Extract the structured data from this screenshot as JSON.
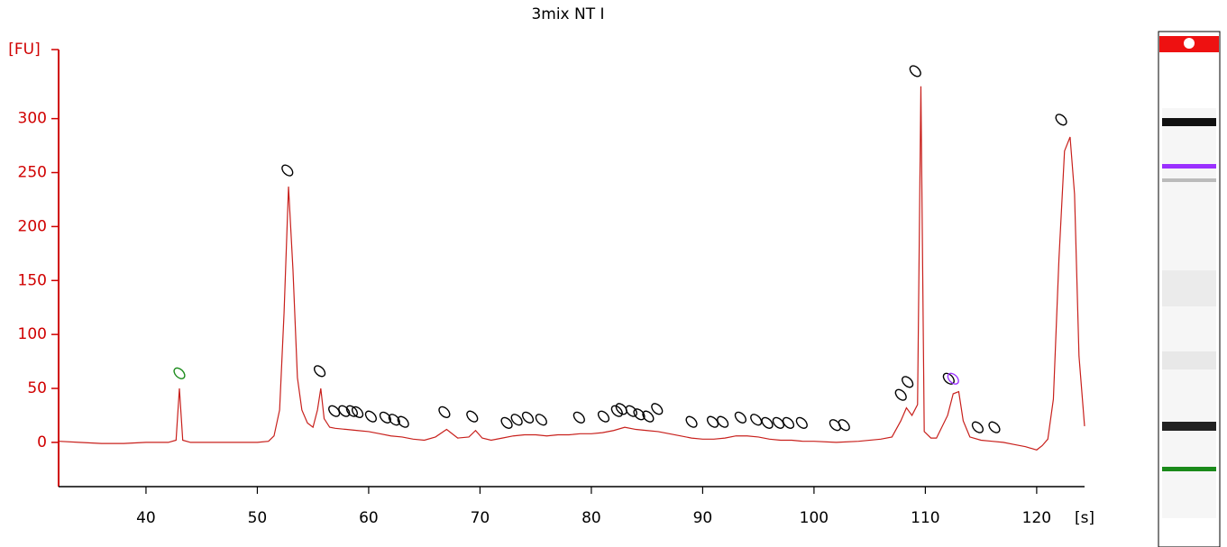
{
  "chart_data": {
    "type": "line",
    "title": "3mix NT I",
    "y_label": "[FU]",
    "x_label": "[s]",
    "xlim": [
      32.15,
      124.3
    ],
    "ylim": [
      -41,
      364
    ],
    "xticks": [
      40,
      50,
      60,
      70,
      80,
      90,
      100,
      110,
      120
    ],
    "yticks": [
      0,
      50,
      100,
      150,
      200,
      250,
      300
    ],
    "y_axis_color": "#d00000",
    "x_axis_color": "#000000",
    "trace": {
      "color": "#c8201c",
      "x": [
        32.2,
        34,
        36,
        38,
        40,
        42,
        42.7,
        43,
        43.3,
        44,
        46,
        48,
        50,
        51,
        51.5,
        52,
        52.4,
        52.8,
        53.2,
        53.6,
        54,
        54.5,
        55,
        55.4,
        55.7,
        56,
        56.5,
        57,
        58,
        59,
        60,
        61,
        62,
        63,
        64,
        65,
        66,
        67,
        68,
        69,
        69.6,
        70.2,
        71,
        72,
        73,
        74,
        75,
        76,
        77,
        78,
        79,
        80,
        81,
        82,
        83,
        84,
        85,
        86,
        87,
        88,
        89,
        90,
        91,
        92,
        93,
        94,
        95,
        96,
        97,
        98,
        99,
        100,
        102,
        104,
        106,
        107,
        107.8,
        108.3,
        108.8,
        109.3,
        109.6,
        109.9,
        110.5,
        111,
        112,
        112.5,
        113,
        113.4,
        114,
        115,
        116,
        117,
        118,
        119,
        120,
        120.5,
        121,
        121.5,
        122,
        122.5,
        123,
        123.4,
        123.8,
        124.3
      ],
      "values": [
        1,
        0,
        -1,
        -1,
        0,
        0,
        2,
        50,
        2,
        0,
        0,
        0,
        0,
        1,
        6,
        30,
        120,
        237,
        160,
        60,
        30,
        18,
        14,
        30,
        50,
        22,
        14,
        13,
        12,
        11,
        10,
        8,
        6,
        5,
        3,
        2,
        5,
        12,
        4,
        5,
        11,
        4,
        2,
        4,
        6,
        7,
        7,
        6,
        7,
        7,
        8,
        8,
        9,
        11,
        14,
        12,
        11,
        10,
        8,
        6,
        4,
        3,
        3,
        4,
        6,
        6,
        5,
        3,
        2,
        2,
        1,
        1,
        0,
        1,
        3,
        5,
        20,
        32,
        25,
        35,
        330,
        10,
        4,
        4,
        25,
        45,
        47,
        20,
        5,
        2,
        1,
        0,
        -2,
        -4,
        -7,
        -3,
        3,
        40,
        170,
        270,
        283,
        230,
        80,
        15
      ]
    },
    "peak_markers": {
      "x": [
        43.0,
        52.7,
        55.6,
        56.9,
        57.8,
        58.5,
        59.0,
        60.2,
        61.5,
        62.3,
        63.1,
        66.8,
        69.3,
        72.4,
        73.3,
        74.3,
        75.5,
        78.9,
        81.1,
        82.3,
        82.7,
        83.6,
        84.3,
        85.1,
        85.9,
        89.0,
        90.9,
        91.8,
        93.4,
        94.8,
        95.8,
        96.8,
        97.7,
        98.9,
        101.9,
        102.7,
        107.8,
        108.4,
        109.1,
        112.1,
        112.5,
        114.7,
        116.2,
        122.2
      ],
      "values": [
        64,
        252,
        66,
        29,
        29,
        29,
        28,
        24,
        23,
        21,
        19,
        28,
        24,
        18,
        21,
        23,
        21,
        23,
        24,
        29,
        31,
        29,
        26,
        24,
        31,
        19,
        19,
        19,
        23,
        21,
        18,
        18,
        18,
        18,
        16,
        16,
        44,
        56,
        344,
        59,
        59,
        14,
        14,
        299
      ],
      "colors": [
        "#1a8a1a",
        "#000",
        "#000",
        "#000",
        "#000",
        "#000",
        "#000",
        "#000",
        "#000",
        "#000",
        "#000",
        "#000",
        "#000",
        "#000",
        "#000",
        "#000",
        "#000",
        "#000",
        "#000",
        "#000",
        "#000",
        "#000",
        "#000",
        "#000",
        "#000",
        "#000",
        "#000",
        "#000",
        "#000",
        "#000",
        "#000",
        "#000",
        "#000",
        "#000",
        "#000",
        "#000",
        "#000",
        "#000",
        "#000",
        "#000",
        "#9b30ff",
        "#000",
        "#000",
        "#000"
      ]
    }
  }
}
